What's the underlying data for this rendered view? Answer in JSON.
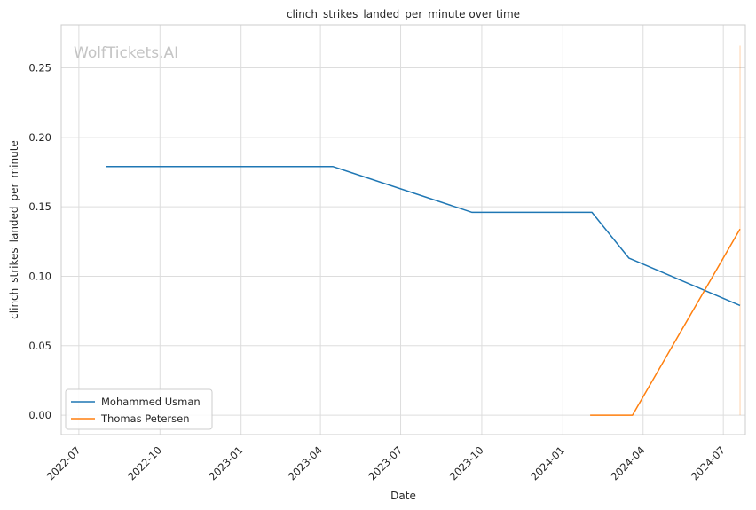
{
  "chart_data": {
    "type": "line",
    "title": "clinch_strikes_landed_per_minute over time",
    "xlabel": "Date",
    "ylabel": "clinch_strikes_landed_per_minute",
    "watermark": "WolfTickets.AI",
    "x_tick_labels": [
      "2022-07",
      "2022-10",
      "2023-01",
      "2023-04",
      "2023-07",
      "2023-10",
      "2024-01",
      "2024-04",
      "2024-07"
    ],
    "y_tick_labels": [
      "0.00",
      "0.05",
      "0.10",
      "0.15",
      "0.20",
      "0.25"
    ],
    "xlim": [
      "2022-06-11",
      "2024-07-26"
    ],
    "ylim": [
      -0.014,
      0.281
    ],
    "grid": true,
    "legend_position": "lower-left",
    "series": [
      {
        "name": "Mohammed Usman",
        "color": "#1f77b4",
        "points": [
          {
            "x": "2022-08-01",
            "y": 0.179
          },
          {
            "x": "2023-04-15",
            "y": 0.179
          },
          {
            "x": "2023-09-20",
            "y": 0.146
          },
          {
            "x": "2024-02-03",
            "y": 0.146
          },
          {
            "x": "2024-03-16",
            "y": 0.113
          },
          {
            "x": "2024-03-20",
            "y": 0.112
          },
          {
            "x": "2024-07-20",
            "y": 0.079
          }
        ]
      },
      {
        "name": "Thomas Petersen",
        "color": "#ff7f0e",
        "points": [
          {
            "x": "2024-02-01",
            "y": 0.0
          },
          {
            "x": "2024-03-20",
            "y": 0.0
          },
          {
            "x": "2024-07-20",
            "y": 0.134
          }
        ]
      }
    ],
    "vertical_marker": {
      "x": "2024-07-20",
      "y_range": [
        0.0,
        0.266
      ],
      "color": "#ff7f0e"
    }
  }
}
